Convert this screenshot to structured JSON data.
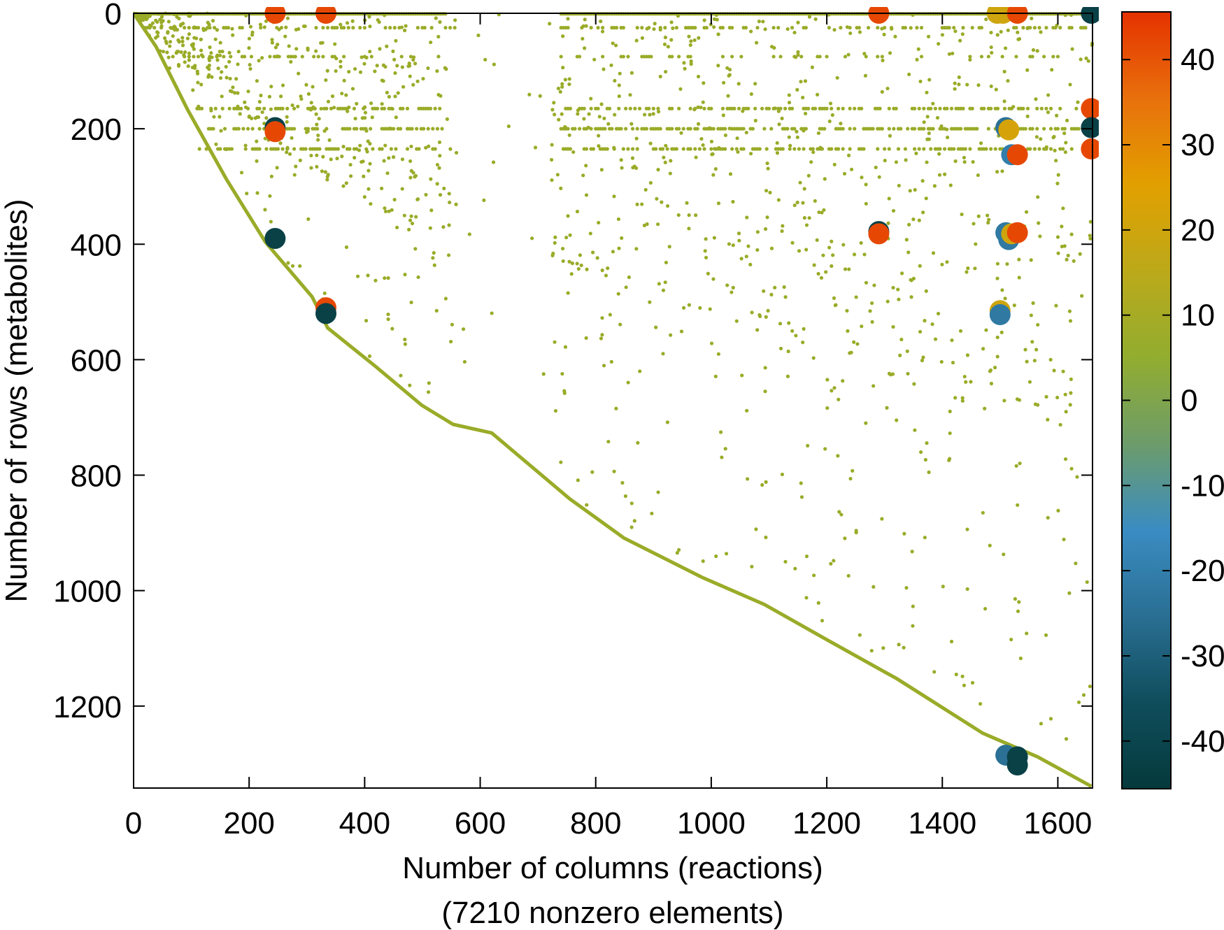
{
  "chart_data": {
    "type": "scatter",
    "title": "",
    "xlabel": "Number of columns (reactions)",
    "xlabel2": "(7210 nonzero elements)",
    "ylabel": "Number of rows (metabolites)",
    "xlim": [
      0,
      1660
    ],
    "ylim": [
      1342,
      0
    ],
    "xticks": [
      "0",
      "200",
      "400",
      "600",
      "800",
      "1000",
      "1200",
      "1400",
      "1600"
    ],
    "yticks": [
      "0",
      "200",
      "400",
      "600",
      "800",
      "1000",
      "1200"
    ],
    "colorbar": {
      "range": [
        -45.6,
        45.6
      ],
      "ticks": [
        "40",
        "30",
        "20",
        "10",
        "0",
        "-10",
        "-20",
        "-30",
        "-40"
      ],
      "colors": [
        "#053a3c",
        "#0f4d5c",
        "#2a6f93",
        "#3a8cc2",
        "#6d9c6a",
        "#92ad2f",
        "#bca91a",
        "#e2a000",
        "#e8700c",
        "#e53200"
      ]
    },
    "marker_color_small": "#9aab28",
    "diagonal": [
      [
        0,
        0
      ],
      [
        39,
        58
      ],
      [
        93,
        166
      ],
      [
        161,
        288
      ],
      [
        228,
        396
      ],
      [
        309,
        491
      ],
      [
        336,
        545
      ],
      [
        418,
        611
      ],
      [
        499,
        679
      ],
      [
        553,
        712
      ],
      [
        620,
        727
      ],
      [
        755,
        841
      ],
      [
        849,
        909
      ],
      [
        984,
        977
      ],
      [
        1092,
        1024
      ],
      [
        1200,
        1085
      ],
      [
        1322,
        1153
      ],
      [
        1470,
        1247
      ],
      [
        1565,
        1288
      ],
      [
        1658,
        1339
      ]
    ],
    "dense_rows": [
      {
        "row": 0,
        "cols": [
          [
            0,
            540
          ],
          [
            740,
            1660
          ]
        ],
        "density": 1.0
      },
      {
        "row": 25,
        "cols": [
          [
            20,
            560
          ],
          [
            740,
            1650
          ]
        ],
        "density": 0.35
      },
      {
        "row": 75,
        "cols": [
          [
            60,
            480
          ],
          [
            740,
            1600
          ]
        ],
        "density": 0.2
      },
      {
        "row": 165,
        "cols": [
          [
            110,
            540
          ],
          [
            740,
            1650
          ]
        ],
        "density": 0.45
      },
      {
        "row": 200,
        "cols": [
          [
            110,
            540
          ],
          [
            740,
            1650
          ]
        ],
        "density": 0.6
      },
      {
        "row": 235,
        "cols": [
          [
            110,
            540
          ],
          [
            740,
            1650
          ]
        ],
        "density": 0.5
      }
    ],
    "sparse_region_count": 1400,
    "large_nonzeros": [
      {
        "col": 245,
        "row": 0,
        "value": 42
      },
      {
        "col": 333,
        "row": 0,
        "value": 42
      },
      {
        "col": 1290,
        "row": 0,
        "value": 42
      },
      {
        "col": 1495,
        "row": 0,
        "value": 20
      },
      {
        "col": 1505,
        "row": 0,
        "value": 20
      },
      {
        "col": 1530,
        "row": 0,
        "value": 42
      },
      {
        "col": 1658,
        "row": 0,
        "value": -42
      },
      {
        "col": 245,
        "row": 198,
        "value": -42
      },
      {
        "col": 245,
        "row": 205,
        "value": 42
      },
      {
        "col": 1658,
        "row": 165,
        "value": 42
      },
      {
        "col": 1658,
        "row": 198,
        "value": -42
      },
      {
        "col": 1658,
        "row": 235,
        "value": 42
      },
      {
        "col": 1510,
        "row": 198,
        "value": -25
      },
      {
        "col": 1515,
        "row": 202,
        "value": 22
      },
      {
        "col": 1520,
        "row": 245,
        "value": -20
      },
      {
        "col": 1530,
        "row": 245,
        "value": 42
      },
      {
        "col": 1290,
        "row": 378,
        "value": -42
      },
      {
        "col": 1290,
        "row": 382,
        "value": 42
      },
      {
        "col": 1510,
        "row": 380,
        "value": -22
      },
      {
        "col": 1515,
        "row": 392,
        "value": -22
      },
      {
        "col": 1520,
        "row": 382,
        "value": 20
      },
      {
        "col": 1530,
        "row": 380,
        "value": 42
      },
      {
        "col": 245,
        "row": 390,
        "value": -42
      },
      {
        "col": 333,
        "row": 510,
        "value": 42
      },
      {
        "col": 333,
        "row": 520,
        "value": -42
      },
      {
        "col": 1500,
        "row": 515,
        "value": 20
      },
      {
        "col": 1500,
        "row": 522,
        "value": -22
      },
      {
        "col": 1510,
        "row": 1285,
        "value": -25
      },
      {
        "col": 1530,
        "row": 1288,
        "value": -42
      },
      {
        "col": 1530,
        "row": 1302,
        "value": -42
      }
    ]
  }
}
